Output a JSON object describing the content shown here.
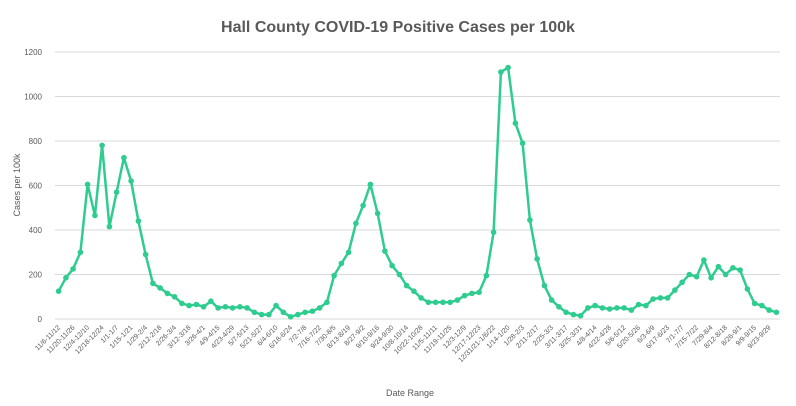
{
  "chart_data": {
    "type": "line",
    "title": "Hall County COVID-19 Positive Cases per 100k",
    "xlabel": "Date Range",
    "ylabel": "Cases per 100k",
    "ylim": [
      0,
      1200
    ],
    "yticks": [
      0,
      200,
      400,
      600,
      800,
      1000,
      1200
    ],
    "grid": true,
    "legend": "none",
    "color": "#2ecc8f",
    "categories": [
      "11/6-11/12",
      "11/13-11/19",
      "11/20-11/26",
      "11/27-12/3",
      "12/4-12/10",
      "12/11-12/17",
      "12/18-12/24",
      "12/25-12/31",
      "1/1-1/7",
      "1/8-1/14",
      "1/15-1/21",
      "1/22-1/28",
      "1/29-2/4",
      "2/5-2/11",
      "2/12-2/18",
      "2/19-2/25",
      "2/26-3/4",
      "3/5-3/11",
      "3/12-3/18",
      "3/19-3/25",
      "3/26-4/1",
      "4/2-4/8",
      "4/9-4/15",
      "4/16-4/22",
      "4/23-4/29",
      "4/30-5/6",
      "5/7-5/13",
      "5/14-5/20",
      "5/21-5/27",
      "5/28-6/3",
      "6/4-6/10",
      "6/11-6/17",
      "6/18-6/24",
      "6/25-7/1",
      "7/2-7/8",
      "7/9-7/15",
      "7/16-7/22",
      "7/23-7/29",
      "7/30-8/5",
      "8/6-8/12",
      "8/13-8/19",
      "8/20-8/26",
      "8/27-9/2",
      "9/3-9/9",
      "9/10-9/16",
      "9/17-9/23",
      "9/24-9/30",
      "10/1-10/7",
      "10/8-10/14",
      "10/15-10/21",
      "10/22-10/28",
      "10/29-11/4",
      "11/5-11/11",
      "11/12-11/18",
      "11/19-11/25",
      "11/26-12/2",
      "12/3-12/9",
      "12/10-12/16",
      "12/17-12/23",
      "12/24-12/30",
      "12/31/21-1/6/22",
      "1/7-1/13",
      "1/14-1/20",
      "1/21-1/27",
      "1/28-2/3",
      "2/4-2/10",
      "2/11-2/17",
      "2/18-2/24",
      "2/25-3/3",
      "3/4-3/10",
      "3/11-3/17",
      "3/18-3/24",
      "3/25-3/31",
      "4/1-4/7",
      "4/8-4/14",
      "4/15-4/21",
      "4/22-4/28",
      "4/29-5/5",
      "5/6-5/12",
      "5/13-5/19",
      "5/20-5/26",
      "5/27-6/2",
      "6/3-6/9",
      "6/10-6/16",
      "6/17-6/23",
      "6/24-6/30",
      "7/1-7/7",
      "7/8-7/14",
      "7/15-7/22",
      "7/23-7/29",
      "7/29-8/4",
      "8/5-8/11",
      "8/12-8/18",
      "8/19-8/25",
      "8/26-9/1",
      "9/2-9/8",
      "9/9-9/15",
      "9/16-9/22",
      "9/23-9/29",
      "9/30-10/6"
    ],
    "tick_labels": [
      "11/6-11/12",
      "11/20-11/26",
      "12/4-12/10",
      "12/18-12/24",
      "1/1-1/7",
      "1/15-1/21",
      "1/29-2/4",
      "2/12-2/18",
      "2/26-3/4",
      "3/12-3/18",
      "3/26-4/1",
      "4/9-4/15",
      "4/23-4/29",
      "5/7-5/13",
      "5/21-5/27",
      "6/4-6/10",
      "6/18-6/24",
      "7/2-7/8",
      "7/16-7/22",
      "7/30-8/5",
      "8/13-8/19",
      "8/27-9/2",
      "9/10-9/16",
      "9/24-9/30",
      "10/8-10/14",
      "10/22-10/28",
      "11/5-11/11",
      "11/19-11/25",
      "12/3-12/9",
      "12/17-12/23",
      "12/31/21-1/6/22",
      "1/14-1/20",
      "1/28-2/3",
      "2/11-2/17",
      "2/25-3/3",
      "3/11-3/17",
      "3/25-3/31",
      "4/8-4/14",
      "4/22-4/28",
      "5/6-5/12",
      "5/20-5/26",
      "6/3-6/9",
      "6/17-6/23",
      "7/1-7/7",
      "7/15-7/22",
      "7/29-8/4",
      "8/12-8/18",
      "8/26-9/1",
      "9/9-9/15",
      "9/23-9/29"
    ],
    "series": [
      {
        "values": [
          125,
          185,
          225,
          300,
          605,
          465,
          780,
          415,
          570,
          725,
          620,
          440,
          290,
          160,
          140,
          115,
          100,
          70,
          60,
          65,
          55,
          80,
          50,
          55,
          50,
          55,
          50,
          30,
          20,
          20,
          60,
          30,
          10,
          20,
          30,
          35,
          50,
          75,
          195,
          250,
          300,
          430,
          510,
          605,
          475,
          305,
          240,
          200,
          150,
          125,
          95,
          75,
          75,
          75,
          75,
          85,
          105,
          115,
          120,
          195,
          390,
          1110,
          1130,
          880,
          790,
          445,
          270,
          150,
          85,
          55,
          30,
          20,
          15,
          50,
          60,
          50,
          45,
          50,
          50,
          40,
          65,
          60,
          90,
          95,
          95,
          130,
          165,
          200,
          190,
          265,
          185,
          235,
          200,
          230,
          220,
          135,
          70,
          60,
          40,
          30
        ]
      }
    ]
  }
}
